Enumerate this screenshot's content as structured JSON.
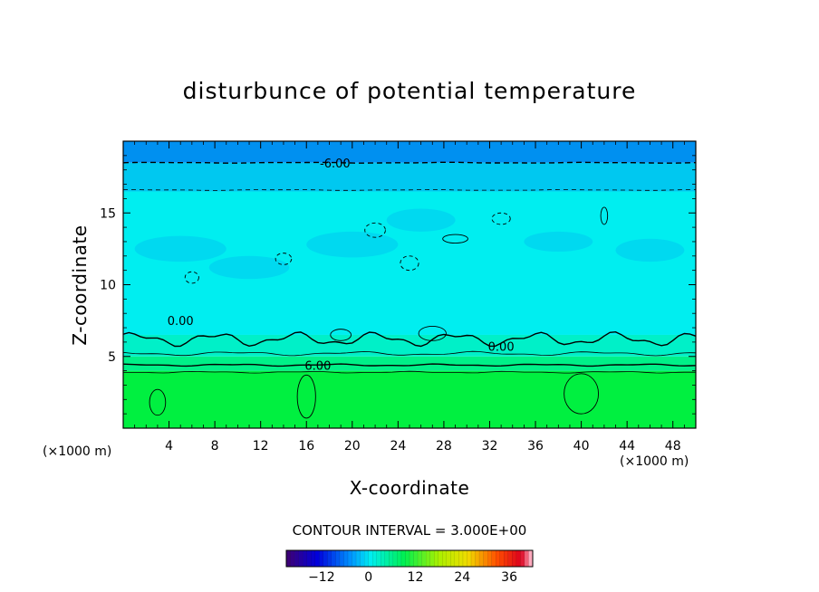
{
  "chart_data": {
    "type": "heatmap",
    "title": "disturbunce of potential temperature",
    "xlabel": "X-coordinate",
    "ylabel": "Z-coordinate",
    "x_unit": "(×1000 m)",
    "xlim": [
      0,
      50
    ],
    "ylim": [
      0,
      20
    ],
    "x_ticks": [
      4,
      8,
      12,
      16,
      20,
      24,
      28,
      32,
      36,
      40,
      44,
      48
    ],
    "y_ticks": [
      5,
      10,
      15
    ],
    "contour_interval_text": "CONTOUR INTERVAL = 3.000E+00",
    "contour_labels": [
      {
        "text": "-6.00",
        "x": 18.5,
        "z": 18.5
      },
      {
        "text": "0.00",
        "x": 5.0,
        "z": 7.5
      },
      {
        "text": "0.00",
        "x": 33.0,
        "z": 5.7
      },
      {
        "text": "6.00",
        "x": 17.0,
        "z": 4.4
      }
    ],
    "colorbar": {
      "min": -21,
      "max": 42,
      "step": 3,
      "ticks": [
        -12,
        0,
        12,
        24,
        36
      ],
      "tick_labels": [
        "−12",
        "0",
        "12",
        "24",
        "36"
      ]
    },
    "layers": [
      {
        "z_range": [
          0,
          4
        ],
        "value": 9,
        "color": "#00f040"
      },
      {
        "z_range": [
          4,
          5
        ],
        "value": 6,
        "color": "#00f088"
      },
      {
        "z_range": [
          5,
          6.5
        ],
        "value": 3,
        "color": "#00f0c8"
      },
      {
        "z_range": [
          6.5,
          16.5
        ],
        "value": 0,
        "color": "#00eef0"
      },
      {
        "z_range": [
          16.5,
          18.5
        ],
        "value": -3,
        "color": "#00c8f0"
      },
      {
        "z_range": [
          18.5,
          20
        ],
        "value": -6,
        "color": "#0090f0"
      }
    ]
  }
}
